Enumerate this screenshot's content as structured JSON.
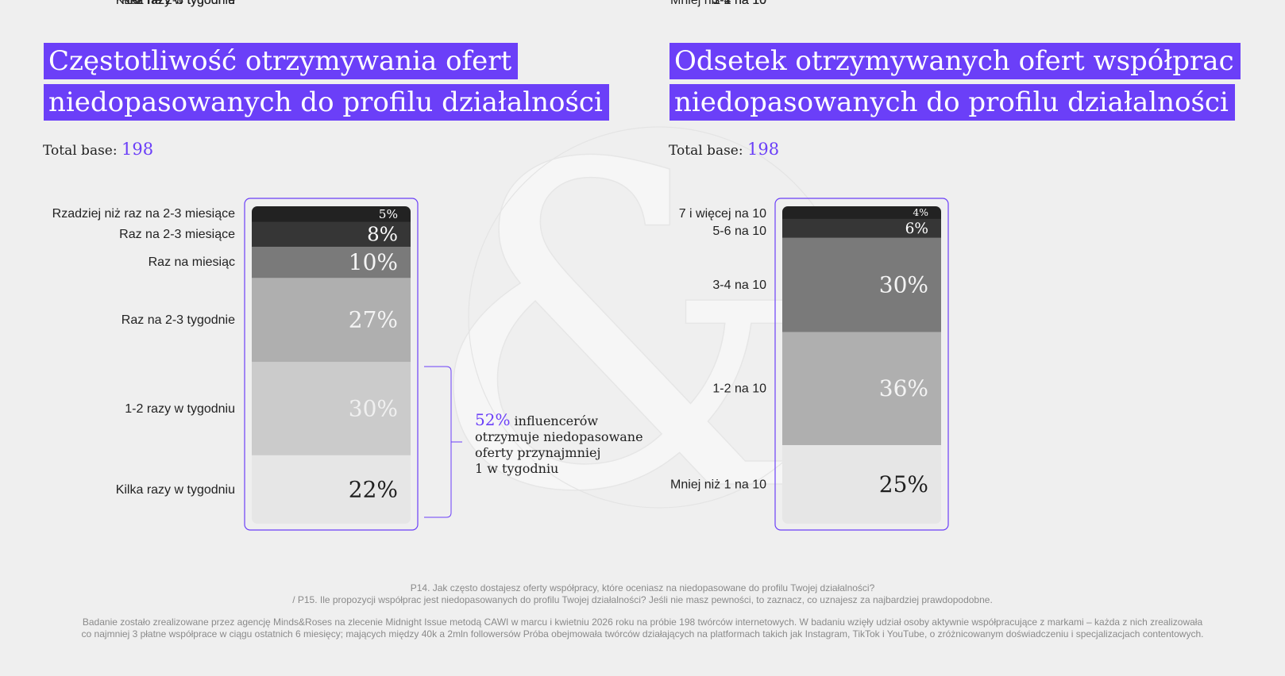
{
  "charts": {
    "left": {
      "title_lines": [
        "Częstotliwość otrzymywania ofert",
        "niedopasowanych do profilu działalności"
      ],
      "base_label": "Total base:",
      "base_value": "198"
    },
    "right": {
      "title_lines": [
        "Odsetek otrzymywanych ofert współprac",
        "niedopasowanych do profilu działalności"
      ],
      "base_label": "Total base:",
      "base_value": "198"
    }
  },
  "callout": {
    "percent": "52%",
    "lines": [
      "influencerów",
      "otrzymuje niedopasowane",
      "oferty przynajmniej",
      "1 w tygodniu"
    ]
  },
  "footnote": {
    "question_lines": [
      "P14. Jak często dostajesz oferty współpracy, które oceniasz na niedopasowane do profilu Twojej działalności?",
      "/ P15. Ile propozycji współprac jest niedopasowanych do profilu Twojej działalności? Jeśli nie masz pewności, to zaznacz, co uznajesz za najbardziej prawdopodobne."
    ],
    "method_lines": [
      "Badanie zostało zrealizowane przez agencję Minds&Roses na zlecenie Midnight Issue metodą CAWI w marcu i kwietniu 2026 roku na próbie 198 twórców internetowych. W badaniu wzięły udział osoby aktywnie współpracujące z markami – każda z nich zrealizowała",
      "co najmniej 3 płatne współprace w ciągu ostatnich 6 miesięcy; mających między 40k a 2mln followersów Próba obejmowała twórców działających na platformach takich jak Instagram, TikTok i YouTube, o zróżnicowanym doświadczeniu i specjalizacjach contentowych."
    ]
  },
  "colors": {
    "accent": "#6b3ff8",
    "background": "#efefef",
    "segments": [
      "#222222",
      "#363636",
      "#7a7a7a",
      "#afafaf",
      "#cbcbcb",
      "#e6e6e6"
    ]
  },
  "chart_data": [
    {
      "type": "bar",
      "stacked": true,
      "title": "Częstotliwość otrzymywania ofert niedopasowanych do profilu działalności",
      "categories": [
        "Rzadziej niż raz na 2-3 miesiące",
        "Raz na 2-3 miesiące",
        "Raz na miesiąc",
        "Raz na 2-3 tygodnie",
        "1-2 razy w tygodniu",
        "Kilka razy w tygodniu"
      ],
      "values": [
        5,
        8,
        10,
        27,
        30,
        22
      ],
      "value_labels": [
        "5%",
        "8%",
        "10%",
        "27%",
        "30%",
        "22%"
      ],
      "unit": "%"
    },
    {
      "type": "bar",
      "stacked": true,
      "title": "Odsetek otrzymywanych ofert współprac niedopasowanych do profilu działalności",
      "categories": [
        "7 i więcej na 10",
        "5-6 na 10",
        "3-4 na 10",
        "1-2 na 10",
        "Mniej niż 1 na 10"
      ],
      "values": [
        4,
        6,
        30,
        36,
        25
      ],
      "value_labels": [
        "4%",
        "6%",
        "30%",
        "36%",
        "25%"
      ],
      "unit": "%"
    }
  ]
}
